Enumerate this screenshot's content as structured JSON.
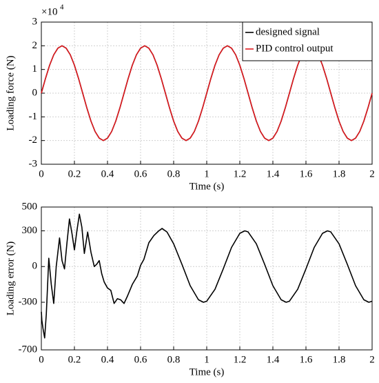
{
  "chart_data": [
    {
      "type": "line",
      "ylabel": "Loading force (N)",
      "xlabel": "Time (s)",
      "y_scale_base": "×10",
      "y_scale_exponent": "4",
      "xlim": [
        0,
        2
      ],
      "xticks": [
        0,
        0.2,
        0.4,
        0.6,
        0.8,
        1,
        1.2,
        1.4,
        1.6,
        1.8,
        2
      ],
      "ylim": [
        -3,
        3
      ],
      "yticks": [
        -3,
        -2,
        -1,
        0,
        1,
        2,
        3
      ],
      "grid": true,
      "legend": "upper right",
      "x": [
        0,
        0.025,
        0.05,
        0.075,
        0.1,
        0.125,
        0.15,
        0.175,
        0.2,
        0.225,
        0.25,
        0.275,
        0.3,
        0.325,
        0.35,
        0.375,
        0.4,
        0.425,
        0.45,
        0.475,
        0.5,
        0.525,
        0.55,
        0.575,
        0.6,
        0.625,
        0.65,
        0.675,
        0.7,
        0.725,
        0.75,
        0.775,
        0.8,
        0.825,
        0.85,
        0.875,
        0.9,
        0.925,
        0.95,
        0.975,
        1,
        1.025,
        1.05,
        1.075,
        1.1,
        1.125,
        1.15,
        1.175,
        1.2,
        1.225,
        1.25,
        1.275,
        1.3,
        1.325,
        1.35,
        1.375,
        1.4,
        1.425,
        1.45,
        1.475,
        1.5,
        1.525,
        1.55,
        1.575,
        1.6,
        1.625,
        1.65,
        1.675,
        1.7,
        1.725,
        1.75,
        1.775,
        1.8,
        1.825,
        1.85,
        1.875,
        1.9,
        1.925,
        1.95,
        1.975,
        2
      ],
      "series": [
        {
          "name": "designed signal",
          "color": "#000000",
          "values": [
            0,
            0.62,
            1.18,
            1.62,
            1.9,
            2,
            1.9,
            1.62,
            1.18,
            0.62,
            0,
            -0.62,
            -1.18,
            -1.62,
            -1.9,
            -2,
            -1.9,
            -1.62,
            -1.18,
            -0.62,
            0,
            0.62,
            1.18,
            1.62,
            1.9,
            2,
            1.9,
            1.62,
            1.18,
            0.62,
            0,
            -0.62,
            -1.18,
            -1.62,
            -1.9,
            -2,
            -1.9,
            -1.62,
            -1.18,
            -0.62,
            0,
            0.62,
            1.18,
            1.62,
            1.9,
            2,
            1.9,
            1.62,
            1.18,
            0.62,
            0,
            -0.62,
            -1.18,
            -1.62,
            -1.9,
            -2,
            -1.9,
            -1.62,
            -1.18,
            -0.62,
            0,
            0.62,
            1.18,
            1.62,
            1.9,
            2,
            1.9,
            1.62,
            1.18,
            0.62,
            0,
            -0.62,
            -1.18,
            -1.62,
            -1.9,
            -2,
            -1.9,
            -1.62,
            -1.18,
            -0.62,
            0
          ]
        },
        {
          "name": "PID control output",
          "color": "#e0191e",
          "values": [
            0,
            0.62,
            1.18,
            1.62,
            1.9,
            2,
            1.9,
            1.62,
            1.18,
            0.62,
            0,
            -0.62,
            -1.18,
            -1.62,
            -1.9,
            -2,
            -1.9,
            -1.62,
            -1.18,
            -0.62,
            0,
            0.62,
            1.18,
            1.62,
            1.9,
            2,
            1.9,
            1.62,
            1.18,
            0.62,
            0,
            -0.62,
            -1.18,
            -1.62,
            -1.9,
            -2,
            -1.9,
            -1.62,
            -1.18,
            -0.62,
            0,
            0.62,
            1.18,
            1.62,
            1.9,
            2,
            1.9,
            1.62,
            1.18,
            0.62,
            0,
            -0.62,
            -1.18,
            -1.62,
            -1.9,
            -2,
            -1.9,
            -1.62,
            -1.18,
            -0.62,
            0,
            0.62,
            1.18,
            1.62,
            1.9,
            2,
            1.9,
            1.62,
            1.18,
            0.62,
            0,
            -0.62,
            -1.18,
            -1.62,
            -1.9,
            -2,
            -1.9,
            -1.62,
            -1.18,
            -0.62,
            0
          ]
        }
      ]
    },
    {
      "type": "line",
      "ylabel": "Loading error (N)",
      "xlabel": "Time (s)",
      "xlim": [
        0,
        2
      ],
      "xticks": [
        0,
        0.2,
        0.4,
        0.6,
        0.8,
        1,
        1.2,
        1.4,
        1.6,
        1.8,
        2
      ],
      "ylim": [
        -700,
        500
      ],
      "yticks": [
        -700,
        -300,
        0,
        300,
        500
      ],
      "grid": true,
      "x": [
        0,
        0.003,
        0.01,
        0.02,
        0.03,
        0.045,
        0.06,
        0.075,
        0.09,
        0.11,
        0.125,
        0.14,
        0.155,
        0.17,
        0.185,
        0.2,
        0.215,
        0.23,
        0.245,
        0.26,
        0.27,
        0.28,
        0.3,
        0.32,
        0.335,
        0.35,
        0.365,
        0.38,
        0.4,
        0.42,
        0.44,
        0.46,
        0.48,
        0.5,
        0.52,
        0.55,
        0.58,
        0.6,
        0.62,
        0.65,
        0.68,
        0.71,
        0.73,
        0.76,
        0.8,
        0.85,
        0.9,
        0.95,
        0.98,
        1,
        1.05,
        1.1,
        1.15,
        1.2,
        1.23,
        1.25,
        1.3,
        1.35,
        1.4,
        1.45,
        1.48,
        1.5,
        1.55,
        1.6,
        1.65,
        1.7,
        1.73,
        1.75,
        1.8,
        1.85,
        1.9,
        1.95,
        1.98,
        2
      ],
      "series": [
        {
          "color": "#000000",
          "values": [
            -380,
            -450,
            -520,
            -600,
            -400,
            70,
            -150,
            -310,
            0,
            240,
            50,
            -20,
            200,
            400,
            280,
            140,
            300,
            440,
            330,
            110,
            200,
            290,
            120,
            0,
            20,
            50,
            -60,
            -130,
            -180,
            -200,
            -310,
            -270,
            -280,
            -310,
            -250,
            -150,
            -80,
            10,
            60,
            200,
            260,
            300,
            320,
            290,
            191,
            19,
            -161,
            -279,
            -300,
            -291,
            -191,
            -19,
            161,
            279,
            300,
            291,
            191,
            19,
            -161,
            -279,
            -300,
            -291,
            -191,
            -19,
            161,
            279,
            300,
            291,
            191,
            19,
            -161,
            -279,
            -300,
            -291
          ]
        }
      ]
    }
  ]
}
